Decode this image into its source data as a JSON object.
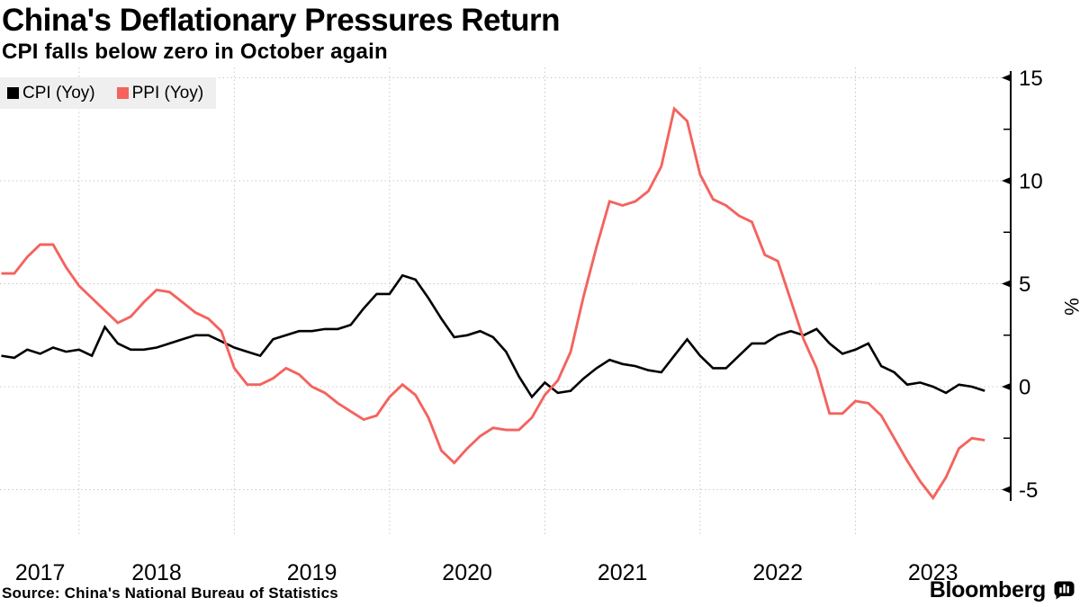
{
  "header": {
    "title": "China's Deflationary Pressures Return",
    "subtitle": "CPI falls below zero in October again"
  },
  "footer": {
    "source": "Source: China's National Bureau of Statistics",
    "brand": "Bloomberg"
  },
  "chart_data": {
    "type": "line",
    "frequency": "monthly",
    "x_start": "2017-06",
    "x_end": "2023-10",
    "grid": "dotted",
    "legend_position": "top-left",
    "x_axis": {
      "years": [
        "2017",
        "2018",
        "2019",
        "2020",
        "2021",
        "2022",
        "2023"
      ]
    },
    "y_axis": {
      "label": "%",
      "ticks": [
        15,
        10,
        5,
        0,
        -5
      ],
      "minor_ticks": [
        12.5,
        7.5,
        2.5,
        -2.5
      ],
      "ylim": [
        -5.5,
        15.5
      ],
      "side": "right"
    },
    "series": [
      {
        "name": "CPI (Yoy)",
        "color": "#000000",
        "values": [
          1.5,
          1.4,
          1.8,
          1.6,
          1.9,
          1.7,
          1.8,
          1.5,
          2.9,
          2.1,
          1.8,
          1.8,
          1.9,
          2.1,
          2.3,
          2.5,
          2.5,
          2.2,
          1.9,
          1.7,
          1.5,
          2.3,
          2.5,
          2.7,
          2.7,
          2.8,
          2.8,
          3.0,
          3.8,
          4.5,
          4.5,
          5.4,
          5.2,
          4.3,
          3.3,
          2.4,
          2.5,
          2.7,
          2.4,
          1.7,
          0.5,
          -0.5,
          0.2,
          -0.3,
          -0.2,
          0.4,
          0.9,
          1.3,
          1.1,
          1.0,
          0.8,
          0.7,
          1.5,
          2.3,
          1.5,
          0.9,
          0.9,
          1.5,
          2.1,
          2.1,
          2.5,
          2.7,
          2.5,
          2.8,
          2.1,
          1.6,
          1.8,
          2.1,
          1.0,
          0.7,
          0.1,
          0.2,
          0.0,
          -0.3,
          0.1,
          0.0,
          -0.2
        ]
      },
      {
        "name": "PPI (Yoy)",
        "color": "#f4635e",
        "values": [
          5.5,
          5.5,
          6.3,
          6.9,
          6.9,
          5.8,
          4.9,
          4.3,
          3.7,
          3.1,
          3.4,
          4.1,
          4.7,
          4.6,
          4.1,
          3.6,
          3.3,
          2.7,
          0.9,
          0.1,
          0.1,
          0.4,
          0.9,
          0.6,
          0.0,
          -0.3,
          -0.8,
          -1.2,
          -1.6,
          -1.4,
          -0.5,
          0.1,
          -0.4,
          -1.5,
          -3.1,
          -3.7,
          -3.0,
          -2.4,
          -2.0,
          -2.1,
          -2.1,
          -1.5,
          -0.4,
          0.3,
          1.7,
          4.4,
          6.8,
          9.0,
          8.8,
          9.0,
          9.5,
          10.7,
          13.5,
          12.9,
          10.3,
          9.1,
          8.8,
          8.3,
          8.0,
          6.4,
          6.1,
          4.2,
          2.3,
          0.9,
          -1.3,
          -1.3,
          -0.7,
          -0.8,
          -1.4,
          -2.5,
          -3.6,
          -4.6,
          -5.4,
          -4.4,
          -3.0,
          -2.5,
          -2.6
        ]
      }
    ],
    "style": {
      "gridline_color": "#c8c8c8",
      "axis_color": "#000000",
      "legend_bg": "#efefef"
    }
  }
}
